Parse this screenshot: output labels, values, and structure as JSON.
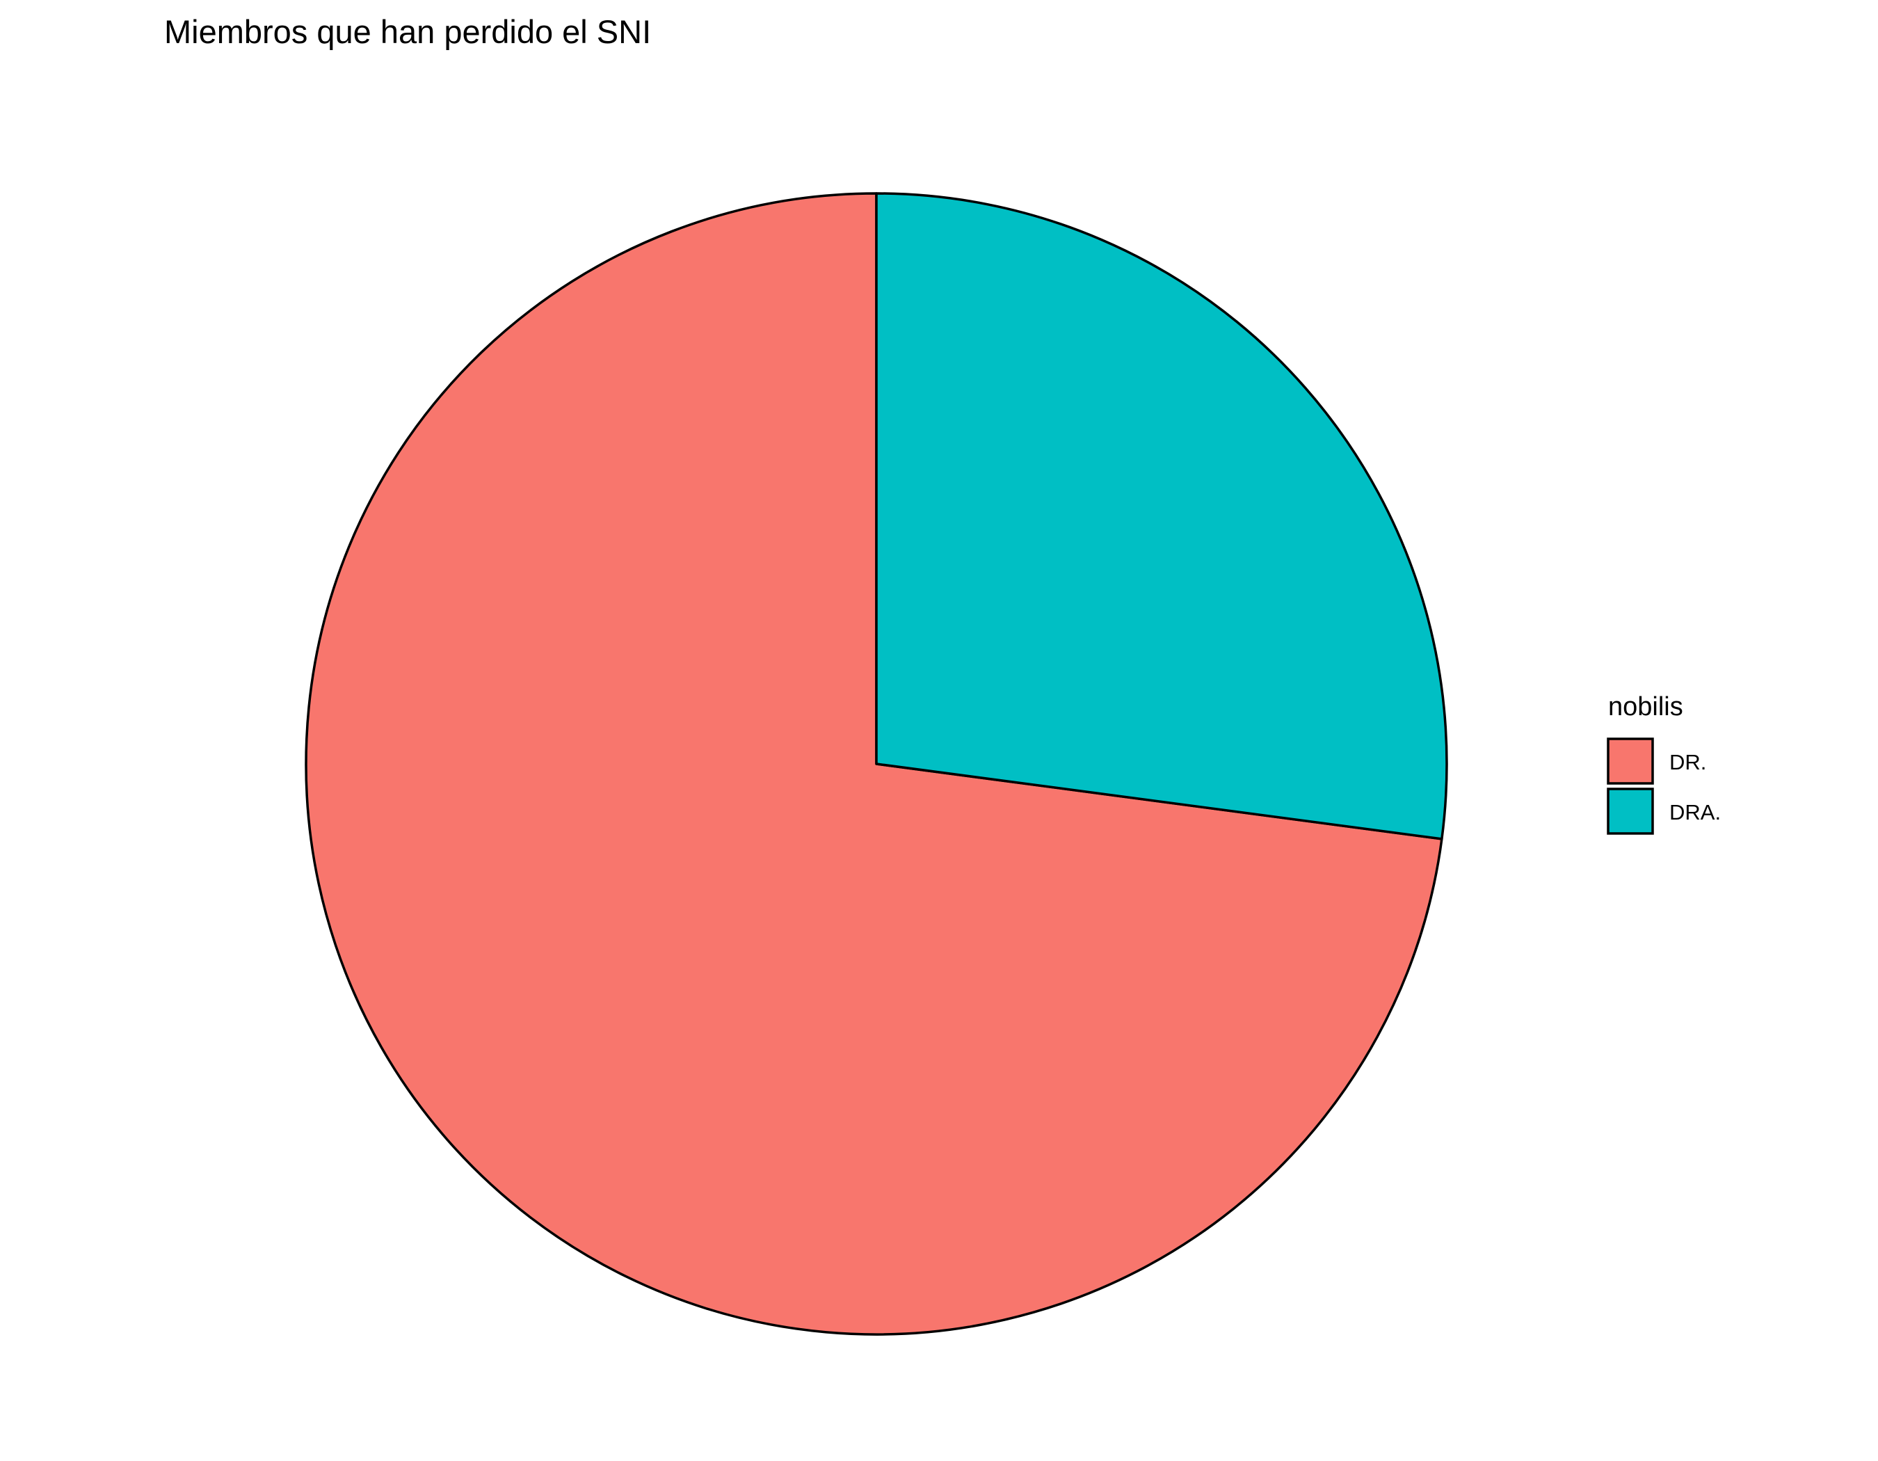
{
  "chart_data": {
    "type": "pie",
    "title": "Miembros que han perdido el SNI",
    "legend_title": "nobilis",
    "legend_position": "right",
    "slices": [
      {
        "label": "DR.",
        "value": 72.9,
        "color": "#F8766D"
      },
      {
        "label": "DRA.",
        "value": 27.1,
        "color": "#00BFC4"
      }
    ],
    "start": "12 o'clock",
    "direction": "counter-clockwise"
  }
}
